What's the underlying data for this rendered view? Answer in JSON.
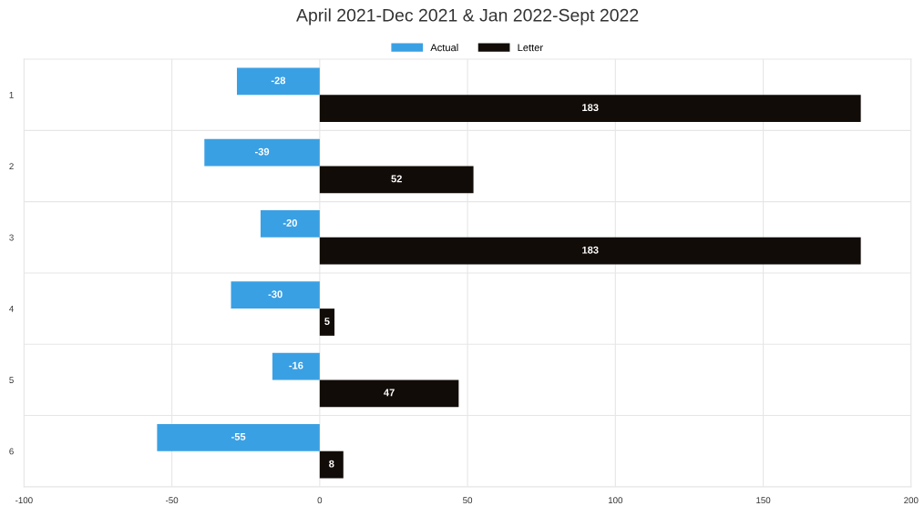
{
  "chart_data": {
    "type": "bar",
    "orientation": "horizontal",
    "title": "April 2021-Dec 2021 & Jan 2022-Sept 2022",
    "categories": [
      "1",
      "2",
      "3",
      "4",
      "5",
      "6"
    ],
    "series": [
      {
        "name": "Actual",
        "color": "#3aa0e4",
        "values": [
          -28,
          -39,
          -20,
          -30,
          -16,
          -55
        ]
      },
      {
        "name": "Letter",
        "color": "#120c08",
        "values": [
          183,
          52,
          183,
          5,
          47,
          8
        ]
      }
    ],
    "xlim": [
      -100,
      200
    ],
    "xticks": [
      -100,
      -50,
      0,
      50,
      100,
      150,
      200
    ],
    "grid": true,
    "legend": "top",
    "data_labels": true
  }
}
